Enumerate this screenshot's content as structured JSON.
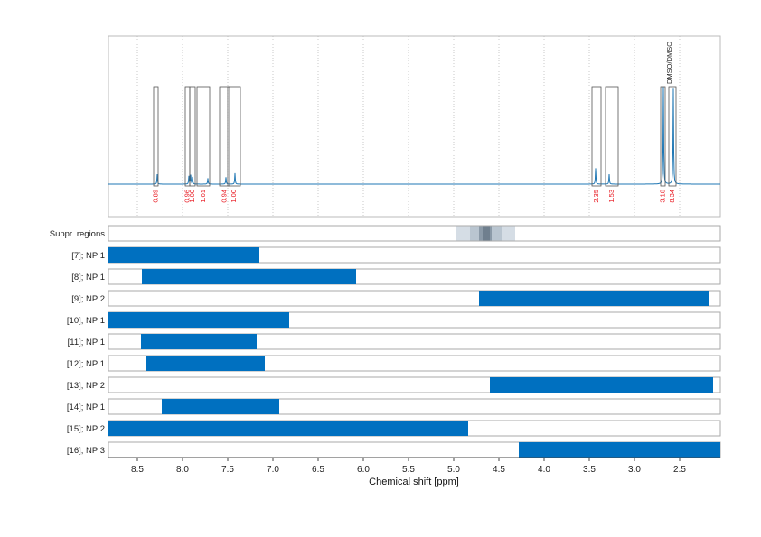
{
  "chart_data": {
    "type": "nmr-spectrum-with-ranges",
    "xlabel": "Chemical shift [ppm]",
    "xlim": [
      8.82,
      2.05
    ],
    "x_axis_reversed": true,
    "x_ticks": [
      8.5,
      8.0,
      7.5,
      7.0,
      6.5,
      6.0,
      5.5,
      5.0,
      4.5,
      4.0,
      3.5,
      3.0,
      2.5
    ],
    "x_tick_labels": [
      "8.5",
      "8.0",
      "7.5",
      "7.0",
      "6.5",
      "6.0",
      "5.5",
      "5.0",
      "4.5",
      "4.0",
      "3.5",
      "3.0",
      "2.5"
    ],
    "grid": "vertical dotted",
    "spectrum_color": "#1f77b4",
    "bar_color": "#0070c0",
    "integral_label_color": "#e8141c",
    "peaks": [
      {
        "ppm": 8.28,
        "height": 0.1
      },
      {
        "ppm": 7.93,
        "height": 0.08
      },
      {
        "ppm": 7.91,
        "height": 0.09
      },
      {
        "ppm": 7.89,
        "height": 0.07
      },
      {
        "ppm": 7.72,
        "height": 0.06
      },
      {
        "ppm": 7.52,
        "height": 0.07
      },
      {
        "ppm": 7.42,
        "height": 0.11
      },
      {
        "ppm": 3.43,
        "height": 0.16
      },
      {
        "ppm": 3.28,
        "height": 0.1
      },
      {
        "ppm": 2.68,
        "height": 0.98
      },
      {
        "ppm": 2.57,
        "height": 0.96
      }
    ],
    "integration_regions": [
      {
        "from": 8.32,
        "to": 8.27,
        "value": "0.89"
      },
      {
        "from": 7.97,
        "to": 7.92,
        "value": "0.96"
      },
      {
        "from": 7.92,
        "to": 7.86,
        "value": "1.00"
      },
      {
        "from": 7.84,
        "to": 7.7,
        "value": "1.01"
      },
      {
        "from": 7.59,
        "to": 7.48,
        "value": "0.94"
      },
      {
        "from": 7.5,
        "to": 7.36,
        "value": "1.00"
      },
      {
        "from": 3.47,
        "to": 3.37,
        "value": "2.35"
      },
      {
        "from": 3.32,
        "to": 3.18,
        "value": "1.53"
      },
      {
        "from": 2.71,
        "to": 2.66,
        "value": "3.18"
      },
      {
        "from": 2.62,
        "to": 2.54,
        "value": "8.34"
      }
    ],
    "peak_annotations": [
      {
        "ppm": 2.62,
        "label": "DMSO/DMSO"
      }
    ],
    "suppressed_regions": {
      "label": "Suppr. regions",
      "bands": [
        {
          "from": 4.98,
          "to": 4.32,
          "shade": "#d5dde5"
        },
        {
          "from": 4.82,
          "to": 4.47,
          "shade": "#b9c5d0"
        },
        {
          "from": 4.72,
          "to": 4.58,
          "shade": "#8b9aa8"
        },
        {
          "from": 4.68,
          "to": 4.6,
          "shade": "#6f7f8e"
        }
      ]
    },
    "ranges": [
      {
        "label": "[7]; NP 1",
        "from": 8.82,
        "to": 7.15
      },
      {
        "label": "[8]; NP 1",
        "from": 8.45,
        "to": 6.08
      },
      {
        "label": "[9]; NP 2",
        "from": 4.72,
        "to": 2.18
      },
      {
        "label": "[10]; NP 1",
        "from": 8.82,
        "to": 6.82
      },
      {
        "label": "[11]; NP 1",
        "from": 8.46,
        "to": 7.18
      },
      {
        "label": "[12]; NP 1",
        "from": 8.4,
        "to": 7.09
      },
      {
        "label": "[13]; NP 2",
        "from": 4.6,
        "to": 2.13
      },
      {
        "label": "[14]; NP 1",
        "from": 8.23,
        "to": 6.93
      },
      {
        "label": "[15]; NP 2",
        "from": 8.82,
        "to": 4.84
      },
      {
        "label": "[16]; NP 3",
        "from": 4.28,
        "to": 2.05
      }
    ]
  }
}
